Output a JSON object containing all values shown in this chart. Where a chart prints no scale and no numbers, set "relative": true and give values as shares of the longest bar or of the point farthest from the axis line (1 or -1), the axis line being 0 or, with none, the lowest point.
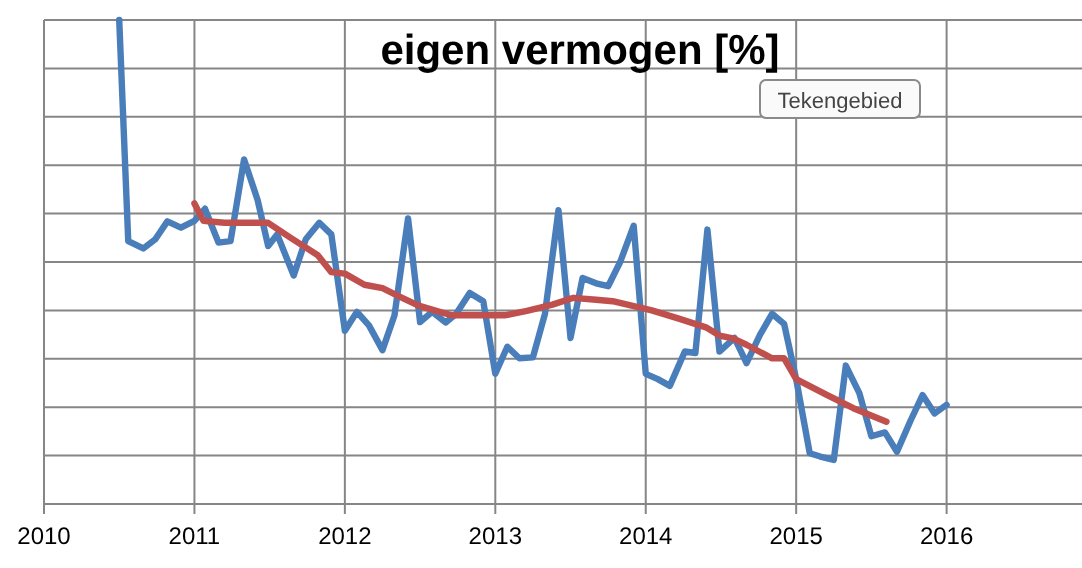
{
  "chart_data": {
    "type": "line",
    "title": "eigen vermogen [%]",
    "relative": true,
    "grid": true,
    "line_style": "solid",
    "xlim": [
      2010,
      2016.9
    ],
    "xticks": [
      2010,
      2011,
      2012,
      2013,
      2014,
      2015,
      2016
    ],
    "annotations": [
      "Tekengebied"
    ],
    "series": [
      {
        "color": "#4a7ebb",
        "x": [
          2010.5,
          2010.56,
          2010.66,
          2010.74,
          2010.82,
          2010.91,
          2011.0,
          2011.07,
          2011.16,
          2011.24,
          2011.33,
          2011.42,
          2011.49,
          2011.55,
          2011.66,
          2011.74,
          2011.83,
          2011.91,
          2012.0,
          2012.08,
          2012.16,
          2012.25,
          2012.33,
          2012.42,
          2012.5,
          2012.58,
          2012.67,
          2012.74,
          2012.83,
          2012.92,
          2013.0,
          2013.08,
          2013.16,
          2013.25,
          2013.33,
          2013.42,
          2013.5,
          2013.58,
          2013.67,
          2013.75,
          2013.83,
          2013.92,
          2014.0,
          2014.08,
          2014.16,
          2014.26,
          2014.33,
          2014.41,
          2014.49,
          2014.59,
          2014.67,
          2014.76,
          2014.84,
          2014.92,
          2015.0,
          2015.09,
          2015.16,
          2015.25,
          2015.33,
          2015.42,
          2015.5,
          2015.59,
          2015.67,
          2015.76,
          2015.84,
          2015.92,
          2016.0
        ],
        "values": [
          1,
          0.543,
          0.528,
          0.547,
          0.584,
          0.571,
          0.585,
          0.61,
          0.54,
          0.543,
          0.712,
          0.628,
          0.533,
          0.557,
          0.472,
          0.547,
          0.581,
          0.557,
          0.358,
          0.397,
          0.369,
          0.318,
          0.39,
          0.59,
          0.376,
          0.397,
          0.375,
          0.393,
          0.436,
          0.419,
          0.269,
          0.325,
          0.301,
          0.303,
          0.393,
          0.607,
          0.343,
          0.467,
          0.456,
          0.45,
          0.5,
          0.575,
          0.269,
          0.258,
          0.244,
          0.315,
          0.312,
          0.567,
          0.315,
          0.343,
          0.291,
          0.35,
          0.393,
          0.372,
          0.258,
          0.105,
          0.098,
          0.091,
          0.286,
          0.229,
          0.14,
          0.148,
          0.108,
          0.172,
          0.225,
          0.187,
          0.205
        ]
      },
      {
        "color": "#c0504d",
        "x": [
          2011.0,
          2011.06,
          2011.2,
          2011.49,
          2011.64,
          2011.82,
          2011.91,
          2012.0,
          2012.13,
          2012.25,
          2012.36,
          2012.49,
          2012.63,
          2012.71,
          2012.94,
          2013.07,
          2013.21,
          2013.38,
          2013.52,
          2013.67,
          2013.78,
          2014.04,
          2014.22,
          2014.4,
          2014.49,
          2014.58,
          2014.67,
          2014.84,
          2014.92,
          2015.0,
          2015.2,
          2015.38,
          2015.6
        ],
        "values": [
          0.621,
          0.585,
          0.581,
          0.581,
          0.55,
          0.514,
          0.479,
          0.476,
          0.453,
          0.446,
          0.429,
          0.41,
          0.397,
          0.39,
          0.39,
          0.39,
          0.399,
          0.412,
          0.426,
          0.422,
          0.419,
          0.4,
          0.383,
          0.365,
          0.348,
          0.342,
          0.329,
          0.301,
          0.301,
          0.258,
          0.226,
          0.198,
          0.17
        ]
      }
    ]
  }
}
